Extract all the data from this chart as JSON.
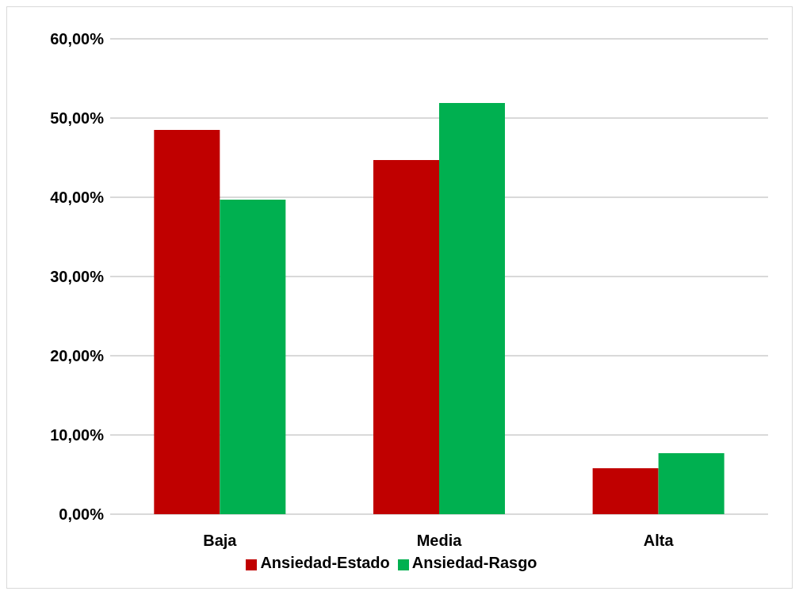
{
  "chart_data": {
    "type": "bar",
    "categories": [
      "Baja",
      "Media",
      "Alta"
    ],
    "series": [
      {
        "name": "Ansiedad-Estado",
        "color": "#c00000",
        "values": [
          48.5,
          44.7,
          5.8
        ]
      },
      {
        "name": "Ansiedad-Rasgo",
        "color": "#00b050",
        "values": [
          39.7,
          51.9,
          7.7
        ]
      }
    ],
    "ylim": [
      0,
      60
    ],
    "yticks": [
      {
        "value": 0,
        "label": "0,00%"
      },
      {
        "value": 10,
        "label": "10,00%"
      },
      {
        "value": 20,
        "label": "20,00%"
      },
      {
        "value": 30,
        "label": "30,00%"
      },
      {
        "value": 40,
        "label": "40,00%"
      },
      {
        "value": 50,
        "label": "50,00%"
      },
      {
        "value": 60,
        "label": "60,00%"
      }
    ],
    "grid": "y",
    "legend": "bottom"
  }
}
